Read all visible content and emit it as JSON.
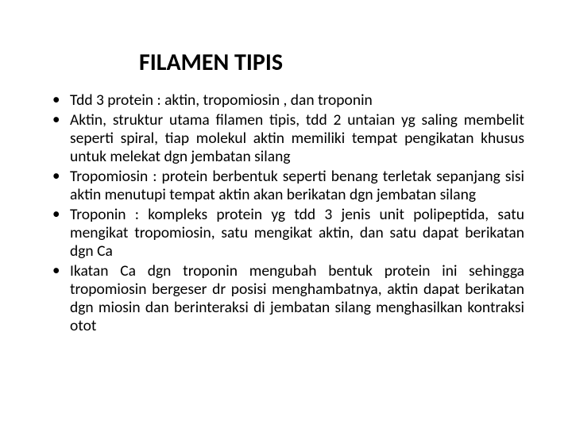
{
  "title": "FILAMEN TIPIS",
  "bullets": [
    "Tdd 3 protein : aktin, tropomiosin , dan troponin",
    "Aktin, struktur utama filamen tipis, tdd 2 untaian yg saling membelit seperti spiral, tiap molekul aktin memiliki tempat pengikatan khusus untuk melekat dgn jembatan silang",
    "Tropomiosin : protein berbentuk seperti benang  terletak sepanjang sisi aktin menutupi tempat aktin akan berikatan dgn jembatan silang",
    "Troponin : kompleks protein yg tdd 3 jenis unit polipeptida, satu mengikat tropomiosin, satu mengikat aktin, dan satu dapat berikatan dgn Ca",
    "Ikatan Ca dgn troponin mengubah bentuk protein ini sehingga tropomiosin bergeser dr posisi menghambatnya, aktin dapat berikatan dgn miosin dan berinteraksi di jembatan silang menghasilkan kontraksi otot"
  ]
}
